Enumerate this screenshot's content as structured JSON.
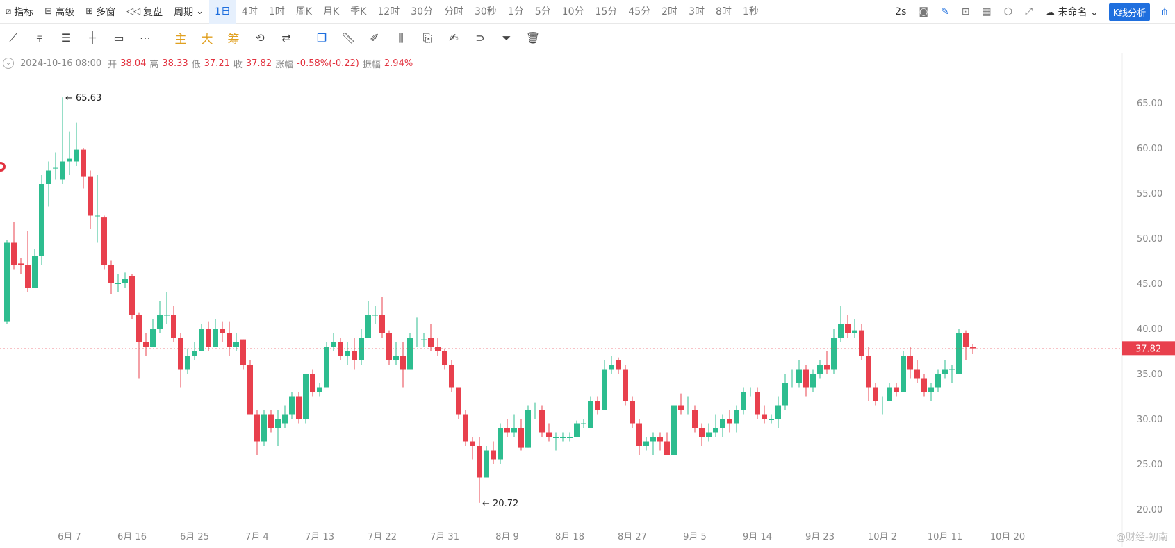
{
  "topbar": {
    "indicator_label": "指标",
    "advanced_label": "高级",
    "multiwindow_label": "多窗",
    "replay_label": "复盘",
    "period_label": "周期",
    "periods": [
      "1日",
      "4时",
      "1时",
      "周K",
      "月K",
      "季K",
      "12时",
      "30分",
      "分时",
      "30秒",
      "1分",
      "5分",
      "10分",
      "15分",
      "45分",
      "2时",
      "3时",
      "8时",
      "1秒"
    ],
    "active_period": "1日",
    "refresh_label": "2s",
    "workspace_label": "未命名",
    "kline_button": "K线分析"
  },
  "drawing_tools": {
    "main_label": "主",
    "big_label": "大",
    "chip_label": "筹"
  },
  "info": {
    "date": "2024-10-16 08:00",
    "open_label": "开",
    "open": "38.04",
    "high_label": "高",
    "high": "38.33",
    "low_label": "低",
    "low": "37.21",
    "close_label": "收",
    "close": "37.82",
    "change_label": "涨幅",
    "change": "-0.58%(-0.22)",
    "amplitude_label": "振幅",
    "amplitude": "2.94%"
  },
  "watermark": "@财经-初南",
  "colors": {
    "up": "#2dbd8f",
    "down": "#e8404d",
    "accent": "#1f6fde"
  },
  "chart_data": {
    "type": "candlestick",
    "y_ticks": [
      "65.00",
      "60.00",
      "55.00",
      "50.00",
      "45.00",
      "40.00",
      "35.00",
      "30.00",
      "25.00",
      "20.00"
    ],
    "ylim": [
      18.5,
      69
    ],
    "x_tick_labels": [
      "6月 7",
      "6月 16",
      "6月 25",
      "7月 4",
      "7月 13",
      "7月 22",
      "7月 31",
      "8月 9",
      "8月 18",
      "8月 27",
      "9月 5",
      "9月 14",
      "9月 23",
      "10月 2",
      "10月 11",
      "10月 20"
    ],
    "x_tick_index": [
      9,
      18,
      27,
      36,
      45,
      54,
      63,
      72,
      81,
      90,
      99,
      108,
      117,
      126,
      135,
      144
    ],
    "last_price": "37.82",
    "max_label": "65.63",
    "min_label": "20.72",
    "candles": [
      [
        40.8,
        49.5,
        40.5,
        49.8
      ],
      [
        49.5,
        47.0,
        46.5,
        51.8
      ],
      [
        47.2,
        47.0,
        46.0,
        47.8
      ],
      [
        47.0,
        44.5,
        44.0,
        50.8
      ],
      [
        44.5,
        48.0,
        44.5,
        48.8
      ],
      [
        48.0,
        56.0,
        47.0,
        57.0
      ],
      [
        56.0,
        57.5,
        53.5,
        58.5
      ],
      [
        57.8,
        57.8,
        56.5,
        59.5
      ],
      [
        56.5,
        58.5,
        56.0,
        65.6
      ],
      [
        58.5,
        58.8,
        57.0,
        61.8
      ],
      [
        58.5,
        59.8,
        58.0,
        62.8
      ],
      [
        59.8,
        56.8,
        55.5,
        60.0
      ],
      [
        56.8,
        52.5,
        51.0,
        57.5
      ],
      [
        52.5,
        52.5,
        49.5,
        57.0
      ],
      [
        52.3,
        47.0,
        46.5,
        52.5
      ],
      [
        47.0,
        45.0,
        43.8,
        47.5
      ],
      [
        45.0,
        45.0,
        44.0,
        46.0
      ],
      [
        45.0,
        45.5,
        44.5,
        46.2
      ],
      [
        45.8,
        41.5,
        41.0,
        46.0
      ],
      [
        41.5,
        38.5,
        34.5,
        41.8
      ],
      [
        38.5,
        38.0,
        37.0,
        39.5
      ],
      [
        38.0,
        40.0,
        38.0,
        41.0
      ],
      [
        40.0,
        41.5,
        39.5,
        43.0
      ],
      [
        41.5,
        41.5,
        40.5,
        44.0
      ],
      [
        41.5,
        39.0,
        38.5,
        42.5
      ],
      [
        39.0,
        35.5,
        33.5,
        39.5
      ],
      [
        35.5,
        37.0,
        35.0,
        37.8
      ],
      [
        37.0,
        37.5,
        36.5,
        38.5
      ],
      [
        37.5,
        40.0,
        37.5,
        40.5
      ],
      [
        40.0,
        38.0,
        37.5,
        40.8
      ],
      [
        38.0,
        40.0,
        38.0,
        41.0
      ],
      [
        40.0,
        39.5,
        38.5,
        40.8
      ],
      [
        39.5,
        38.0,
        37.0,
        40.8
      ],
      [
        38.0,
        38.5,
        37.5,
        39.5
      ],
      [
        38.8,
        36.0,
        35.5,
        38.8
      ],
      [
        36.0,
        30.5,
        30.5,
        36.5
      ],
      [
        30.5,
        27.5,
        26.0,
        31.0
      ],
      [
        27.5,
        30.5,
        27.0,
        31.0
      ],
      [
        30.5,
        29.0,
        28.5,
        31.0
      ],
      [
        29.0,
        30.0,
        27.0,
        31.0
      ],
      [
        29.5,
        30.5,
        29.0,
        31.5
      ],
      [
        30.5,
        32.5,
        30.0,
        33.0
      ],
      [
        32.5,
        30.0,
        29.5,
        33.0
      ],
      [
        30.0,
        35.0,
        29.5,
        35.0
      ],
      [
        35.0,
        33.0,
        32.5,
        35.5
      ],
      [
        33.0,
        33.5,
        32.5,
        34.0
      ],
      [
        33.5,
        38.0,
        33.5,
        38.5
      ],
      [
        38.0,
        38.5,
        37.5,
        39.5
      ],
      [
        38.5,
        37.0,
        36.5,
        39.0
      ],
      [
        37.0,
        37.5,
        36.0,
        38.5
      ],
      [
        37.5,
        36.5,
        35.5,
        39.0
      ],
      [
        36.5,
        39.0,
        36.0,
        40.0
      ],
      [
        39.0,
        41.5,
        39.0,
        43.0
      ],
      [
        41.5,
        41.5,
        40.5,
        42.5
      ],
      [
        41.5,
        39.5,
        39.0,
        43.5
      ],
      [
        39.5,
        36.5,
        36.0,
        39.8
      ],
      [
        36.5,
        37.0,
        36.0,
        38.5
      ],
      [
        37.0,
        35.5,
        33.5,
        38.5
      ],
      [
        35.5,
        39.0,
        35.5,
        39.5
      ],
      [
        39.0,
        39.0,
        38.0,
        41.2
      ],
      [
        38.8,
        38.8,
        38.0,
        39.5
      ],
      [
        39.0,
        38.0,
        37.5,
        40.5
      ],
      [
        38.0,
        37.5,
        37.0,
        39.0
      ],
      [
        37.5,
        36.0,
        35.5,
        37.8
      ],
      [
        36.0,
        33.5,
        33.0,
        36.5
      ],
      [
        33.5,
        30.5,
        30.0,
        33.5
      ],
      [
        30.5,
        27.5,
        27.0,
        31.0
      ],
      [
        27.5,
        27.0,
        25.5,
        28.0
      ],
      [
        27.0,
        23.5,
        20.7,
        28.0
      ],
      [
        23.5,
        26.5,
        23.5,
        27.0
      ],
      [
        26.5,
        25.5,
        25.0,
        27.5
      ],
      [
        25.5,
        29.0,
        25.0,
        29.5
      ],
      [
        29.0,
        28.5,
        28.0,
        30.0
      ],
      [
        28.5,
        29.0,
        28.0,
        30.5
      ],
      [
        29.0,
        26.8,
        26.5,
        30.0
      ],
      [
        26.8,
        31.0,
        26.8,
        31.5
      ],
      [
        31.0,
        31.0,
        30.0,
        31.8
      ],
      [
        31.0,
        28.5,
        28.0,
        31.5
      ],
      [
        28.5,
        28.0,
        27.5,
        29.5
      ],
      [
        28.0,
        28.0,
        26.5,
        28.5
      ],
      [
        28.0,
        28.0,
        27.5,
        28.5
      ],
      [
        28.0,
        28.0,
        27.5,
        28.5
      ],
      [
        28.0,
        29.5,
        28.0,
        29.8
      ],
      [
        29.5,
        29.5,
        29.0,
        30.0
      ],
      [
        29.0,
        32.0,
        29.0,
        32.5
      ],
      [
        32.0,
        31.0,
        30.5,
        32.5
      ],
      [
        31.0,
        35.5,
        31.0,
        36.5
      ],
      [
        35.5,
        36.0,
        35.0,
        37.0
      ],
      [
        36.5,
        35.5,
        35.0,
        36.8
      ],
      [
        35.5,
        32.0,
        31.5,
        36.0
      ],
      [
        32.0,
        29.5,
        29.0,
        32.5
      ],
      [
        29.5,
        27.0,
        26.0,
        30.0
      ],
      [
        27.0,
        27.5,
        26.5,
        28.0
      ],
      [
        27.5,
        28.0,
        26.0,
        28.5
      ],
      [
        28.0,
        27.5,
        26.5,
        28.5
      ],
      [
        27.5,
        26.0,
        26.0,
        28.5
      ],
      [
        26.0,
        31.5,
        26.0,
        31.5
      ],
      [
        31.5,
        31.0,
        30.5,
        32.8
      ],
      [
        31.0,
        31.0,
        30.5,
        32.5
      ],
      [
        31.0,
        29.0,
        28.5,
        31.5
      ],
      [
        29.0,
        28.0,
        27.0,
        29.5
      ],
      [
        28.0,
        28.5,
        27.5,
        29.5
      ],
      [
        28.5,
        29.0,
        28.0,
        30.5
      ],
      [
        29.0,
        30.0,
        28.0,
        30.5
      ],
      [
        30.0,
        29.5,
        28.5,
        31.0
      ],
      [
        29.5,
        31.0,
        28.5,
        31.5
      ],
      [
        31.0,
        33.0,
        30.5,
        33.5
      ],
      [
        33.0,
        33.0,
        32.5,
        33.5
      ],
      [
        33.0,
        30.5,
        30.0,
        33.5
      ],
      [
        30.5,
        30.0,
        29.5,
        31.5
      ],
      [
        30.0,
        30.0,
        29.5,
        30.5
      ],
      [
        30.0,
        31.5,
        29.0,
        32.5
      ],
      [
        31.5,
        34.0,
        31.0,
        35.0
      ],
      [
        34.0,
        34.0,
        33.5,
        35.5
      ],
      [
        34.0,
        35.5,
        33.5,
        36.5
      ],
      [
        35.5,
        33.5,
        32.5,
        36.0
      ],
      [
        33.5,
        35.0,
        33.0,
        35.5
      ],
      [
        35.0,
        36.0,
        34.5,
        36.5
      ],
      [
        36.0,
        35.5,
        35.0,
        37.5
      ],
      [
        35.5,
        39.0,
        35.0,
        40.0
      ],
      [
        39.0,
        40.5,
        38.5,
        42.5
      ],
      [
        40.5,
        39.5,
        39.0,
        41.5
      ],
      [
        39.5,
        39.8,
        39.0,
        41.0
      ],
      [
        39.8,
        37.0,
        36.5,
        40.5
      ],
      [
        37.0,
        33.5,
        32.0,
        38.0
      ],
      [
        33.5,
        32.0,
        31.5,
        34.0
      ],
      [
        32.0,
        32.0,
        30.5,
        32.5
      ],
      [
        32.0,
        33.5,
        32.0,
        34.0
      ],
      [
        33.5,
        33.0,
        32.5,
        34.0
      ],
      [
        33.0,
        37.0,
        33.0,
        37.5
      ],
      [
        37.0,
        35.5,
        34.5,
        38.0
      ],
      [
        35.5,
        34.5,
        34.0,
        36.5
      ],
      [
        34.5,
        33.0,
        32.5,
        35.0
      ],
      [
        33.0,
        33.5,
        32.0,
        34.0
      ],
      [
        33.5,
        35.0,
        33.0,
        35.5
      ],
      [
        35.0,
        35.5,
        34.5,
        36.5
      ],
      [
        35.5,
        35.5,
        34.0,
        36.0
      ],
      [
        35.0,
        39.5,
        35.0,
        40.0
      ],
      [
        39.5,
        38.0,
        36.5,
        39.8
      ],
      [
        38.0,
        37.8,
        37.2,
        38.3
      ]
    ]
  }
}
